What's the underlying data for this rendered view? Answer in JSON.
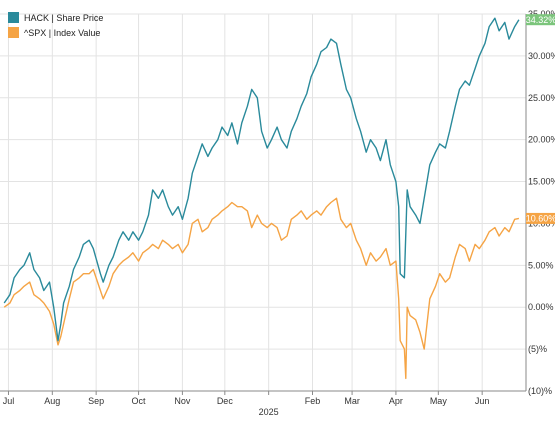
{
  "chart_data": {
    "type": "line",
    "series": [
      {
        "name": "HACK | Share Price",
        "color": "#2a8a9b",
        "end_label": "34.32%",
        "end_value": 34.32,
        "points": [
          [
            "2024-06-28",
            0.5
          ],
          [
            "2024-07-02",
            1.5
          ],
          [
            "2024-07-05",
            3.5
          ],
          [
            "2024-07-09",
            4.5
          ],
          [
            "2024-07-12",
            5.0
          ],
          [
            "2024-07-16",
            6.5
          ],
          [
            "2024-07-19",
            4.5
          ],
          [
            "2024-07-23",
            3.5
          ],
          [
            "2024-07-26",
            2.0
          ],
          [
            "2024-07-30",
            3.0
          ],
          [
            "2024-08-02",
            0.0
          ],
          [
            "2024-08-05",
            -4.0
          ],
          [
            "2024-08-07",
            -2.0
          ],
          [
            "2024-08-09",
            0.5
          ],
          [
            "2024-08-13",
            2.5
          ],
          [
            "2024-08-16",
            4.5
          ],
          [
            "2024-08-20",
            6.0
          ],
          [
            "2024-08-23",
            7.5
          ],
          [
            "2024-08-27",
            8.0
          ],
          [
            "2024-08-30",
            7.0
          ],
          [
            "2024-09-04",
            4.0
          ],
          [
            "2024-09-06",
            3.0
          ],
          [
            "2024-09-10",
            5.0
          ],
          [
            "2024-09-13",
            6.0
          ],
          [
            "2024-09-17",
            8.0
          ],
          [
            "2024-09-20",
            9.0
          ],
          [
            "2024-09-24",
            8.0
          ],
          [
            "2024-09-27",
            9.0
          ],
          [
            "2024-10-01",
            8.0
          ],
          [
            "2024-10-04",
            9.0
          ],
          [
            "2024-10-08",
            11.0
          ],
          [
            "2024-10-11",
            14.0
          ],
          [
            "2024-10-15",
            13.0
          ],
          [
            "2024-10-18",
            14.0
          ],
          [
            "2024-10-22",
            12.0
          ],
          [
            "2024-10-25",
            11.0
          ],
          [
            "2024-10-29",
            12.0
          ],
          [
            "2024-11-01",
            10.5
          ],
          [
            "2024-11-05",
            13.0
          ],
          [
            "2024-11-08",
            16.0
          ],
          [
            "2024-11-12",
            18.0
          ],
          [
            "2024-11-15",
            19.5
          ],
          [
            "2024-11-19",
            18.0
          ],
          [
            "2024-11-22",
            19.0
          ],
          [
            "2024-11-26",
            20.0
          ],
          [
            "2024-11-29",
            21.5
          ],
          [
            "2024-12-03",
            20.5
          ],
          [
            "2024-12-06",
            22.0
          ],
          [
            "2024-12-10",
            19.5
          ],
          [
            "2024-12-13",
            22.0
          ],
          [
            "2024-12-17",
            24.0
          ],
          [
            "2024-12-20",
            26.0
          ],
          [
            "2024-12-24",
            25.0
          ],
          [
            "2024-12-27",
            21.0
          ],
          [
            "2024-12-31",
            19.0
          ],
          [
            "2025-01-03",
            20.0
          ],
          [
            "2025-01-07",
            21.5
          ],
          [
            "2025-01-10",
            20.0
          ],
          [
            "2025-01-14",
            19.0
          ],
          [
            "2025-01-17",
            21.0
          ],
          [
            "2025-01-21",
            22.5
          ],
          [
            "2025-01-24",
            24.0
          ],
          [
            "2025-01-28",
            25.5
          ],
          [
            "2025-01-31",
            27.5
          ],
          [
            "2025-02-04",
            29.0
          ],
          [
            "2025-02-07",
            30.5
          ],
          [
            "2025-02-11",
            31.0
          ],
          [
            "2025-02-14",
            32.0
          ],
          [
            "2025-02-18",
            31.5
          ],
          [
            "2025-02-21",
            29.0
          ],
          [
            "2025-02-25",
            26.0
          ],
          [
            "2025-02-28",
            25.0
          ],
          [
            "2025-03-04",
            22.5
          ],
          [
            "2025-03-07",
            21.0
          ],
          [
            "2025-03-11",
            18.5
          ],
          [
            "2025-03-14",
            20.0
          ],
          [
            "2025-03-18",
            19.0
          ],
          [
            "2025-03-21",
            17.5
          ],
          [
            "2025-03-25",
            20.0
          ],
          [
            "2025-03-28",
            17.0
          ],
          [
            "2025-04-01",
            15.0
          ],
          [
            "2025-04-03",
            12.0
          ],
          [
            "2025-04-04",
            4.0
          ],
          [
            "2025-04-07",
            3.5
          ],
          [
            "2025-04-09",
            14.0
          ],
          [
            "2025-04-11",
            12.0
          ],
          [
            "2025-04-15",
            11.0
          ],
          [
            "2025-04-18",
            10.0
          ],
          [
            "2025-04-22",
            14.0
          ],
          [
            "2025-04-25",
            17.0
          ],
          [
            "2025-04-29",
            18.5
          ],
          [
            "2025-05-02",
            19.5
          ],
          [
            "2025-05-06",
            19.0
          ],
          [
            "2025-05-09",
            21.0
          ],
          [
            "2025-05-13",
            24.0
          ],
          [
            "2025-05-16",
            26.0
          ],
          [
            "2025-05-20",
            27.0
          ],
          [
            "2025-05-23",
            26.5
          ],
          [
            "2025-05-27",
            28.5
          ],
          [
            "2025-05-30",
            30.0
          ],
          [
            "2025-06-03",
            31.5
          ],
          [
            "2025-06-06",
            33.5
          ],
          [
            "2025-06-10",
            34.5
          ],
          [
            "2025-06-13",
            33.0
          ],
          [
            "2025-06-17",
            34.0
          ],
          [
            "2025-06-20",
            32.0
          ],
          [
            "2025-06-24",
            33.5
          ],
          [
            "2025-06-27",
            34.32
          ]
        ]
      },
      {
        "name": "^SPX | Index Value",
        "color": "#f5a445",
        "end_label": "10.60%",
        "end_value": 10.6,
        "points": [
          [
            "2024-06-28",
            0.0
          ],
          [
            "2024-07-02",
            0.5
          ],
          [
            "2024-07-05",
            1.5
          ],
          [
            "2024-07-09",
            2.0
          ],
          [
            "2024-07-12",
            2.5
          ],
          [
            "2024-07-16",
            3.0
          ],
          [
            "2024-07-19",
            1.5
          ],
          [
            "2024-07-23",
            1.0
          ],
          [
            "2024-07-26",
            0.5
          ],
          [
            "2024-07-30",
            -0.5
          ],
          [
            "2024-08-02",
            -2.0
          ],
          [
            "2024-08-05",
            -4.5
          ],
          [
            "2024-08-07",
            -3.5
          ],
          [
            "2024-08-09",
            -2.0
          ],
          [
            "2024-08-13",
            1.0
          ],
          [
            "2024-08-16",
            3.0
          ],
          [
            "2024-08-20",
            3.5
          ],
          [
            "2024-08-23",
            4.0
          ],
          [
            "2024-08-27",
            4.0
          ],
          [
            "2024-08-30",
            4.5
          ],
          [
            "2024-09-04",
            2.0
          ],
          [
            "2024-09-06",
            1.0
          ],
          [
            "2024-09-10",
            2.5
          ],
          [
            "2024-09-13",
            4.0
          ],
          [
            "2024-09-17",
            5.0
          ],
          [
            "2024-09-20",
            5.5
          ],
          [
            "2024-09-24",
            6.0
          ],
          [
            "2024-09-27",
            6.5
          ],
          [
            "2024-10-01",
            5.5
          ],
          [
            "2024-10-04",
            6.5
          ],
          [
            "2024-10-08",
            7.0
          ],
          [
            "2024-10-11",
            7.5
          ],
          [
            "2024-10-15",
            7.0
          ],
          [
            "2024-10-18",
            8.0
          ],
          [
            "2024-10-22",
            7.5
          ],
          [
            "2024-10-25",
            7.0
          ],
          [
            "2024-10-29",
            7.5
          ],
          [
            "2024-11-01",
            6.5
          ],
          [
            "2024-11-05",
            7.5
          ],
          [
            "2024-11-08",
            10.0
          ],
          [
            "2024-11-12",
            10.5
          ],
          [
            "2024-11-15",
            9.0
          ],
          [
            "2024-11-19",
            9.5
          ],
          [
            "2024-11-22",
            10.5
          ],
          [
            "2024-11-26",
            11.0
          ],
          [
            "2024-11-29",
            11.5
          ],
          [
            "2024-12-03",
            12.0
          ],
          [
            "2024-12-06",
            12.5
          ],
          [
            "2024-12-10",
            12.0
          ],
          [
            "2024-12-13",
            12.0
          ],
          [
            "2024-12-17",
            11.5
          ],
          [
            "2024-12-20",
            9.5
          ],
          [
            "2024-12-24",
            11.0
          ],
          [
            "2024-12-27",
            10.0
          ],
          [
            "2024-12-31",
            9.5
          ],
          [
            "2025-01-03",
            10.0
          ],
          [
            "2025-01-07",
            9.5
          ],
          [
            "2025-01-10",
            8.0
          ],
          [
            "2025-01-14",
            8.5
          ],
          [
            "2025-01-17",
            10.5
          ],
          [
            "2025-01-21",
            11.0
          ],
          [
            "2025-01-24",
            11.5
          ],
          [
            "2025-01-28",
            10.5
          ],
          [
            "2025-01-31",
            11.0
          ],
          [
            "2025-02-04",
            11.5
          ],
          [
            "2025-02-07",
            11.0
          ],
          [
            "2025-02-11",
            12.0
          ],
          [
            "2025-02-14",
            12.5
          ],
          [
            "2025-02-18",
            13.0
          ],
          [
            "2025-02-21",
            10.5
          ],
          [
            "2025-02-25",
            9.5
          ],
          [
            "2025-02-28",
            10.0
          ],
          [
            "2025-03-04",
            8.0
          ],
          [
            "2025-03-07",
            7.0
          ],
          [
            "2025-03-11",
            5.0
          ],
          [
            "2025-03-14",
            6.5
          ],
          [
            "2025-03-18",
            5.5
          ],
          [
            "2025-03-21",
            6.0
          ],
          [
            "2025-03-25",
            7.0
          ],
          [
            "2025-03-28",
            5.0
          ],
          [
            "2025-04-01",
            5.5
          ],
          [
            "2025-04-03",
            1.0
          ],
          [
            "2025-04-04",
            -4.0
          ],
          [
            "2025-04-07",
            -5.0
          ],
          [
            "2025-04-08",
            -8.5
          ],
          [
            "2025-04-09",
            0.0
          ],
          [
            "2025-04-11",
            -1.0
          ],
          [
            "2025-04-15",
            -1.5
          ],
          [
            "2025-04-18",
            -3.0
          ],
          [
            "2025-04-21",
            -5.0
          ],
          [
            "2025-04-25",
            1.0
          ],
          [
            "2025-04-29",
            2.5
          ],
          [
            "2025-05-02",
            4.0
          ],
          [
            "2025-05-06",
            3.0
          ],
          [
            "2025-05-09",
            3.5
          ],
          [
            "2025-05-13",
            6.0
          ],
          [
            "2025-05-16",
            7.5
          ],
          [
            "2025-05-20",
            7.0
          ],
          [
            "2025-05-23",
            5.5
          ],
          [
            "2025-05-27",
            7.5
          ],
          [
            "2025-05-30",
            7.0
          ],
          [
            "2025-06-03",
            8.0
          ],
          [
            "2025-06-06",
            9.0
          ],
          [
            "2025-06-10",
            9.5
          ],
          [
            "2025-06-13",
            8.5
          ],
          [
            "2025-06-17",
            9.5
          ],
          [
            "2025-06-20",
            9.0
          ],
          [
            "2025-06-24",
            10.5
          ],
          [
            "2025-06-27",
            10.6
          ]
        ]
      }
    ],
    "xlim": [
      "2024-06-25",
      "2025-07-02"
    ],
    "ylim": [
      -10,
      35
    ],
    "y_ticks": [
      {
        "value": 35,
        "label": "35.00%"
      },
      {
        "value": 30,
        "label": "30.00%"
      },
      {
        "value": 25,
        "label": "25.00%"
      },
      {
        "value": 20,
        "label": "20.00%"
      },
      {
        "value": 15,
        "label": "15.00%"
      },
      {
        "value": 10,
        "label": "10.00%"
      },
      {
        "value": 5,
        "label": "5.00%"
      },
      {
        "value": 0,
        "label": "0.00%"
      },
      {
        "value": -5,
        "label": "(5)%"
      },
      {
        "value": -10,
        "label": "(10)%"
      }
    ],
    "x_ticks": [
      {
        "date": "2024-07-01",
        "label": "Jul"
      },
      {
        "date": "2024-08-01",
        "label": "Aug"
      },
      {
        "date": "2024-09-01",
        "label": "Sep"
      },
      {
        "date": "2024-10-01",
        "label": "Oct"
      },
      {
        "date": "2024-11-01",
        "label": "Nov"
      },
      {
        "date": "2024-12-01",
        "label": "Dec"
      },
      {
        "date": "2025-01-01",
        "label": "2025"
      },
      {
        "date": "2025-02-01",
        "label": "Feb"
      },
      {
        "date": "2025-03-01",
        "label": "Mar"
      },
      {
        "date": "2025-04-01",
        "label": "Apr"
      },
      {
        "date": "2025-05-01",
        "label": "May"
      },
      {
        "date": "2025-06-01",
        "label": "Jun"
      }
    ],
    "grid": true,
    "legend_position": "top-left",
    "y_axis_side": "right"
  }
}
